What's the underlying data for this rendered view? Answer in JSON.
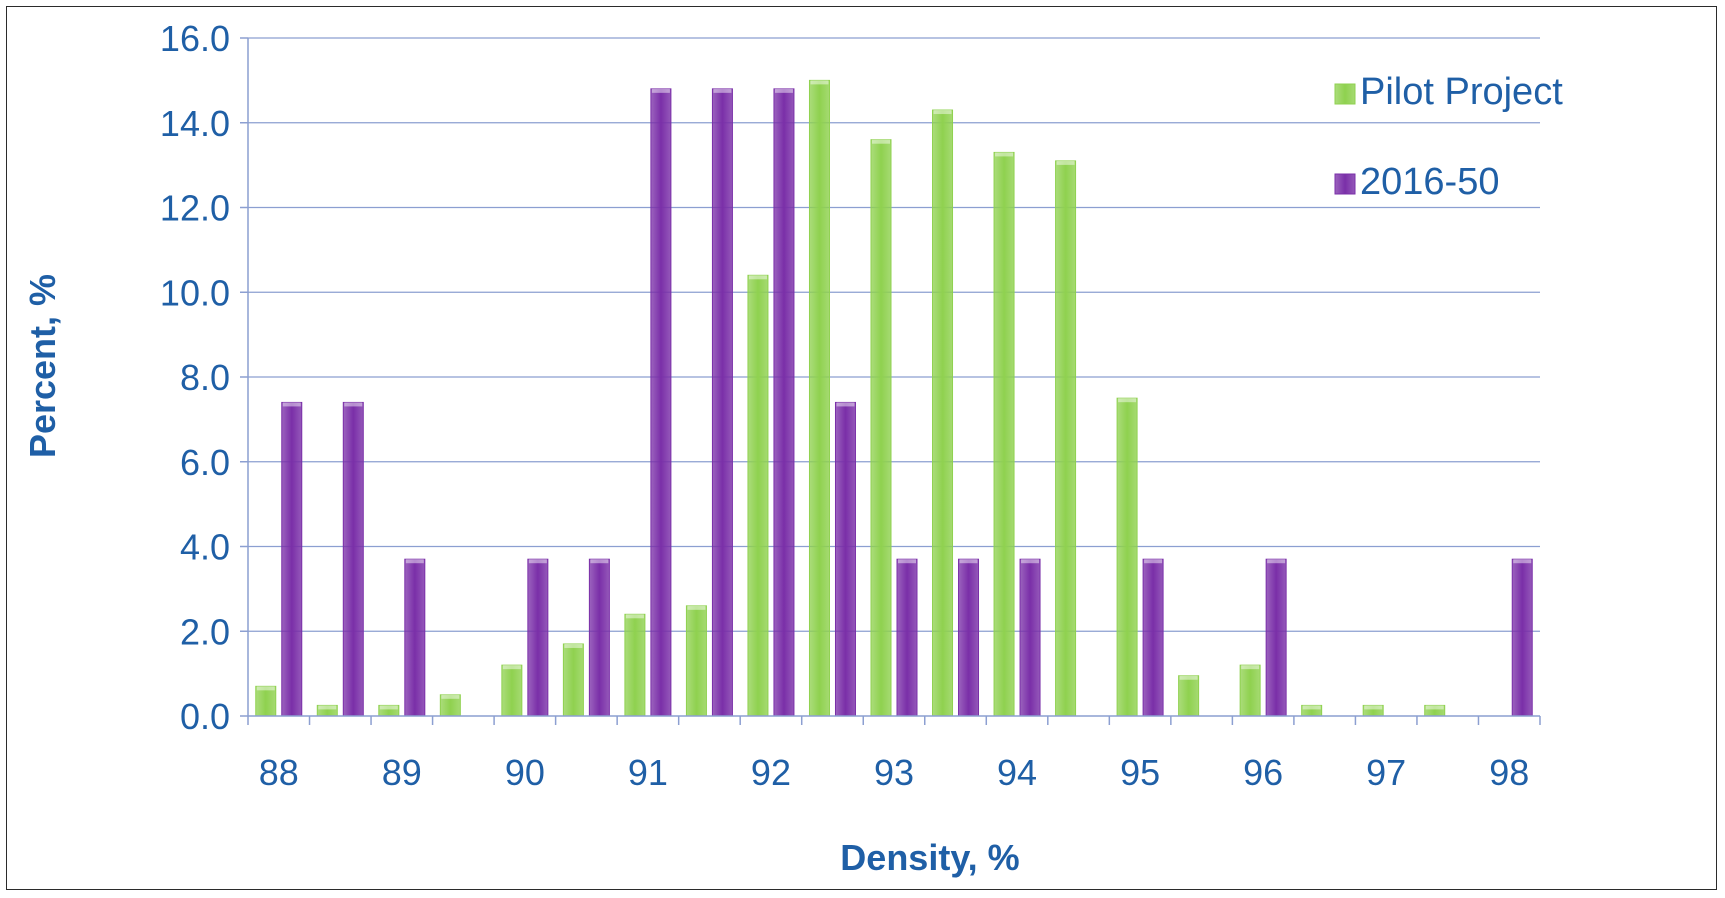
{
  "chart_data": {
    "type": "bar",
    "title": "",
    "xlabel": "Density, %",
    "ylabel": "Percent, %",
    "x_tick_labels": [
      "88",
      "89",
      "90",
      "91",
      "92",
      "93",
      "94",
      "95",
      "96",
      "97",
      "98"
    ],
    "categories": [
      88.0,
      88.5,
      89.0,
      89.5,
      90.0,
      90.5,
      91.0,
      91.5,
      92.0,
      92.5,
      93.0,
      93.5,
      94.0,
      94.5,
      95.0,
      95.5,
      96.0,
      96.5,
      97.0,
      97.5,
      98.0
    ],
    "series": [
      {
        "name": "Pilot Project",
        "color": "#8fd14f",
        "values": [
          0.7,
          0.25,
          0.25,
          0.5,
          1.2,
          1.7,
          2.4,
          2.6,
          10.4,
          15.0,
          13.6,
          14.3,
          13.3,
          13.1,
          7.5,
          0.95,
          1.2,
          0.25,
          0.25,
          0.25,
          0.0
        ]
      },
      {
        "name": "2016-50",
        "color": "#7a2fa8",
        "values": [
          7.4,
          7.4,
          3.7,
          0.0,
          3.7,
          3.7,
          14.8,
          14.8,
          14.8,
          7.4,
          3.7,
          3.7,
          3.7,
          0.0,
          3.7,
          0.0,
          3.7,
          0.0,
          0.0,
          0.0,
          3.7
        ]
      }
    ],
    "y_ticks": [
      "0.0",
      "2.0",
      "4.0",
      "6.0",
      "8.0",
      "10.0",
      "12.0",
      "14.0",
      "16.0"
    ],
    "ylim": [
      0,
      16
    ],
    "grid": true,
    "legend_position": "top-right"
  }
}
